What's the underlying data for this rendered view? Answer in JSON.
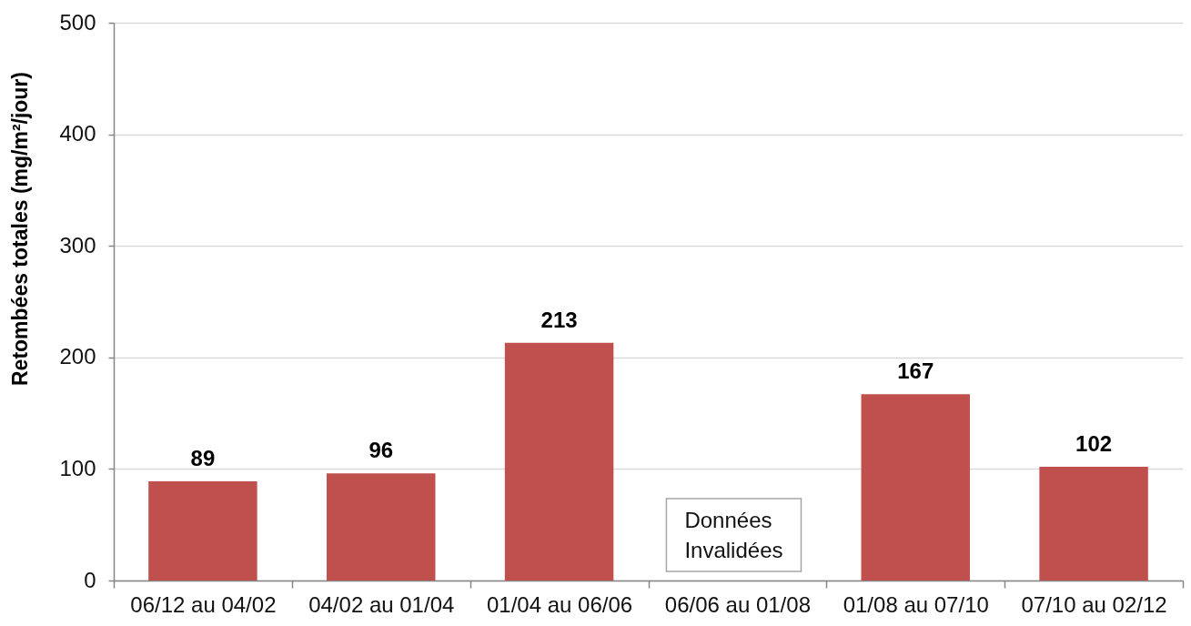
{
  "chart_data": {
    "type": "bar",
    "ylabel": "Retombées totales (mg/m²/jour)",
    "categories": [
      "06/12 au 04/02",
      "04/02 au 01/04",
      "01/04 au 06/06",
      "06/06 au 01/08",
      "01/08 au 07/10",
      "07/10 au 02/12"
    ],
    "values": [
      89,
      96,
      213,
      null,
      167,
      102
    ],
    "color": "#c0504d",
    "ylim": [
      0,
      500
    ],
    "yticks": [
      0,
      100,
      200,
      300,
      400,
      500
    ],
    "grid": "y",
    "data_labels": true,
    "annotations": [
      "Données\nInvalidées"
    ]
  }
}
